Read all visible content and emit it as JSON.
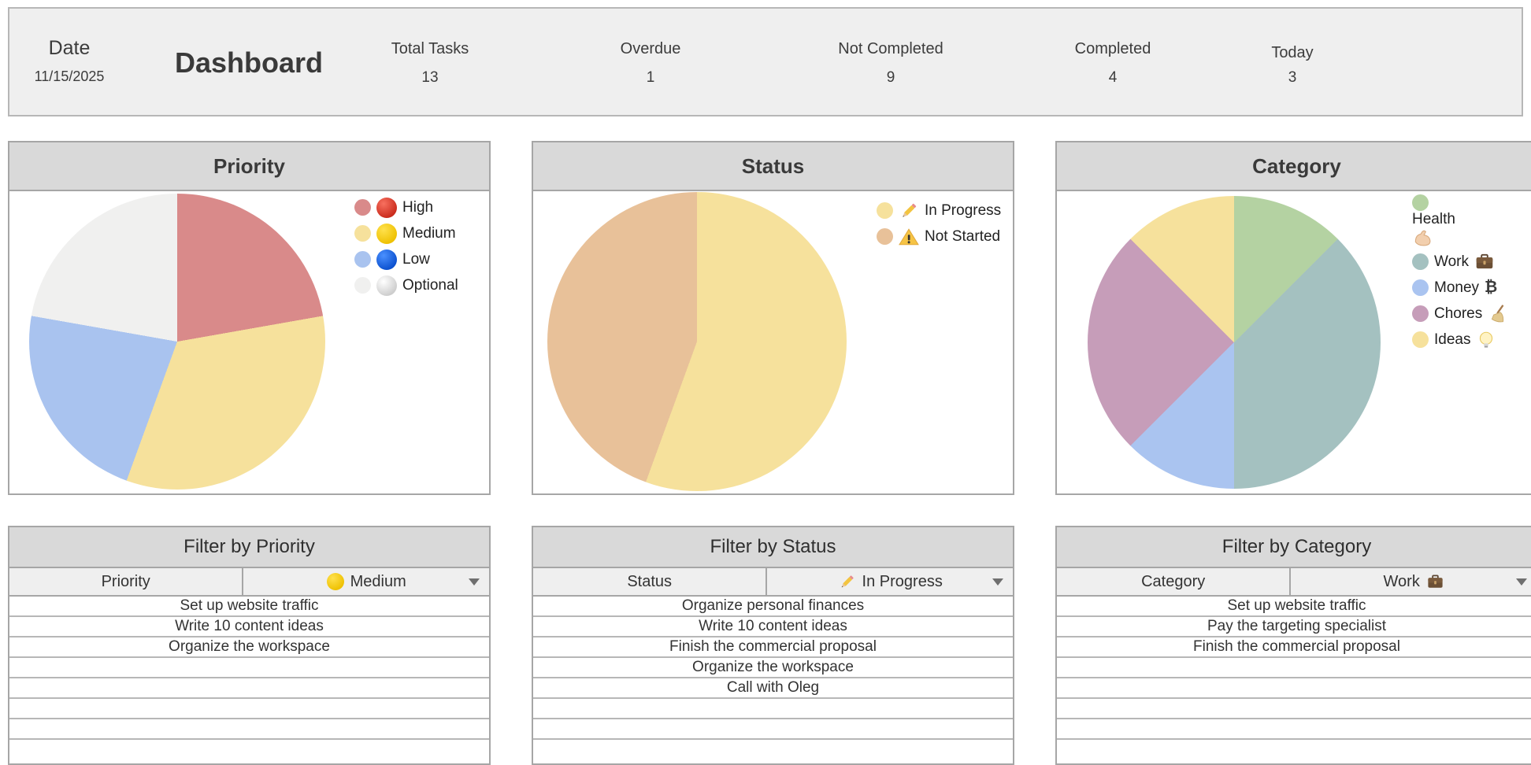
{
  "header": {
    "date_label": "Date",
    "date_value": "11/15/2025",
    "title": "Dashboard",
    "stats": [
      {
        "label": "Total Tasks",
        "value": "13"
      },
      {
        "label": "Overdue",
        "value": "1"
      },
      {
        "label": "Not Completed",
        "value": "9"
      },
      {
        "label": "Completed",
        "value": "4"
      },
      {
        "label": "Today",
        "value": "3"
      }
    ]
  },
  "chart_data": [
    {
      "type": "pie",
      "title": "Priority",
      "legend_position": "right",
      "total": 9,
      "slices": [
        {
          "label": "High",
          "emoji": "🔴",
          "icon": "red-circle-icon",
          "value": 2,
          "angle_deg": 80,
          "color": "#d98a8a"
        },
        {
          "label": "Medium",
          "emoji": "🟡",
          "icon": "yellow-circle-icon",
          "value": 3,
          "angle_deg": 120,
          "color": "#f6e19c"
        },
        {
          "label": "Low",
          "emoji": "🔵",
          "icon": "blue-circle-icon",
          "value": 2,
          "angle_deg": 80,
          "color": "#a9c3ef"
        },
        {
          "label": "Optional",
          "emoji": "⚪",
          "icon": "white-circle-icon",
          "value": 2,
          "angle_deg": 80,
          "color": "#f0f0ef"
        }
      ]
    },
    {
      "type": "pie",
      "title": "Status",
      "legend_position": "right",
      "total": 9,
      "slices": [
        {
          "label": "In Progress",
          "emoji": "✏️",
          "icon": "pencil-icon",
          "value": 5,
          "angle_deg": 200,
          "color": "#f6e19c"
        },
        {
          "label": "Not Started",
          "emoji": "⚠️",
          "icon": "warning-icon",
          "value": 4,
          "angle_deg": 160,
          "color": "#e8c199"
        }
      ]
    },
    {
      "type": "pie",
      "title": "Category",
      "legend_position": "right",
      "total": 8,
      "slices": [
        {
          "label": "Health",
          "emoji": "💪",
          "icon": "muscle-icon",
          "icon_after": true,
          "wrap": true,
          "value": 1,
          "angle_deg": 45,
          "color": "#b4d2a2"
        },
        {
          "label": "Work",
          "emoji": "💼",
          "icon": "briefcase-icon",
          "icon_after": true,
          "value": 3,
          "angle_deg": 135,
          "color": "#a4c1c0"
        },
        {
          "label": "Money",
          "emoji": "₿",
          "icon": "bitcoin-icon",
          "icon_after": true,
          "value": 1,
          "angle_deg": 45,
          "color": "#aac4f0"
        },
        {
          "label": "Chores",
          "emoji": "🧹",
          "icon": "broom-icon",
          "icon_after": true,
          "value": 2,
          "angle_deg": 90,
          "color": "#c69db9"
        },
        {
          "label": "Ideas",
          "emoji": "💡",
          "icon": "bulb-icon",
          "icon_after": true,
          "value": 1,
          "angle_deg": 45,
          "color": "#f6e19c"
        }
      ]
    }
  ],
  "filters": [
    {
      "title": "Filter by Priority",
      "column_label": "Priority",
      "selected": {
        "label": "Medium",
        "emoji": "🟡",
        "icon": "yellow-circle-icon",
        "icon_after": false
      },
      "rows": [
        "Set up website traffic",
        "Write 10 content ideas",
        "Organize the workspace",
        "",
        "",
        "",
        ""
      ]
    },
    {
      "title": "Filter by Status",
      "column_label": "Status",
      "selected": {
        "label": "In Progress",
        "emoji": "✏️",
        "icon": "pencil-icon",
        "icon_after": false
      },
      "rows": [
        "Organize personal finances",
        "Write 10 content ideas",
        "Finish the commercial proposal",
        "Organize the workspace",
        "Call with Oleg",
        "",
        ""
      ]
    },
    {
      "title": "Filter by Category",
      "column_label": "Category",
      "selected": {
        "label": "Work",
        "emoji": "💼",
        "icon": "briefcase-icon",
        "icon_after": true
      },
      "rows": [
        "Set up website traffic",
        "Pay the targeting specialist",
        "Finish the commercial proposal",
        "",
        "",
        "",
        ""
      ]
    }
  ]
}
